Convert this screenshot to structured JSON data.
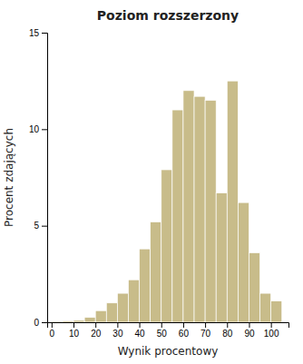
{
  "chart_data": {
    "type": "histogram",
    "title": "Poziom rozszerzony",
    "xlabel": "Wynik procentowy",
    "ylabel": "Procent zdających",
    "bins": [
      0,
      5,
      10,
      15,
      20,
      25,
      30,
      35,
      40,
      45,
      50,
      55,
      60,
      65,
      70,
      75,
      80,
      85,
      90,
      95,
      100,
      105
    ],
    "values": [
      0.05,
      0.07,
      0.1,
      0.25,
      0.6,
      1.0,
      1.5,
      2.2,
      3.8,
      5.2,
      7.9,
      11.0,
      12.0,
      11.7,
      11.5,
      6.7,
      12.5,
      6.2,
      3.6,
      1.5,
      1.1
    ],
    "color": "#C8BC8A",
    "xlim": [
      -2,
      108
    ],
    "ylim": [
      0,
      15
    ],
    "xticks": [
      0,
      10,
      20,
      30,
      40,
      50,
      60,
      70,
      80,
      90,
      100
    ],
    "yticks": [
      0,
      5,
      10,
      15
    ]
  }
}
